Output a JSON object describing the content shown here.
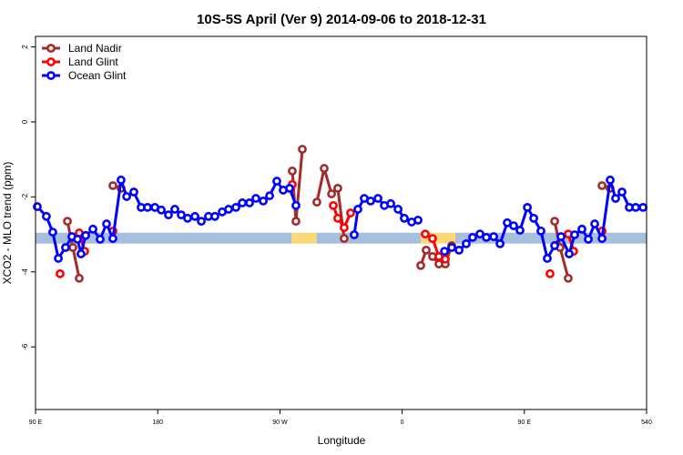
{
  "chart_data": {
    "type": "line",
    "title": "10S-5S April (Ver 9)   2014-09-06 to 2018-12-31",
    "x_label": "Longitude",
    "y_label": "XCO2 - MLO trend (ppm)",
    "xlim": [
      90,
      540
    ],
    "xticks": [
      {
        "value": 90,
        "label": "90 E"
      },
      180,
      {
        "value": 270,
        "label": "90 W"
      },
      {
        "value": 360,
        "label": "0"
      },
      {
        "value": 450,
        "label": "90 E"
      },
      540
    ],
    "ylim": [
      -7.67,
      2.28
    ],
    "yticks": [
      2,
      0,
      -2,
      -4,
      -6
    ],
    "legend": "top-left",
    "band": {
      "value": -3.1,
      "segments": [
        {
          "from": 90,
          "to": 278.5,
          "color": "#a7bedc"
        },
        {
          "from": 278.5,
          "to": 297,
          "color": "#fad97a"
        },
        {
          "from": 297,
          "to": 373.7,
          "color": "#a7bedc"
        },
        {
          "from": 373.7,
          "to": 399.2,
          "color": "#fad97a"
        },
        {
          "from": 399.2,
          "to": 540,
          "color": "#a7bedc"
        }
      ]
    },
    "series": [
      {
        "name": "Land Nadir",
        "color": "#a52a2a",
        "x": [
          113.5,
          117.5,
          122.2,
          null,
          147.0,
          153.0,
          null,
          279.1,
          281.8,
          286.5,
          null,
          297.2,
          302.6,
          308.0,
          312.6,
          317.3,
          null,
          373.7,
          377.7,
          382.4,
          387.1,
          391.8,
          396.5,
          null,
          472.3,
          476.3,
          482.3,
          null,
          507.2,
          513.2
        ],
        "values": [
          -2.65,
          -3.35,
          -4.17,
          null,
          -1.7,
          -1.77,
          null,
          -1.31,
          -2.65,
          -0.73,
          null,
          -2.14,
          -1.24,
          -1.92,
          -1.77,
          -3.11,
          null,
          -3.83,
          -3.42,
          -3.59,
          -3.79,
          -3.79,
          -3.3,
          null,
          -2.65,
          -3.35,
          -4.17,
          null,
          -1.7,
          -1.77
        ]
      },
      {
        "name": "Land Glint",
        "color": "#ff0000",
        "x": [
          108.1,
          null,
          122.2,
          126.2,
          null,
          147.0,
          null,
          279.1,
          null,
          309.3,
          312.6,
          317.3,
          322.0,
          null,
          377.0,
          382.4,
          387.1,
          391.8,
          null,
          468.9,
          null,
          482.3,
          486.3,
          null,
          507.2
        ],
        "values": [
          -4.05,
          null,
          -2.96,
          -3.45,
          null,
          -2.91,
          null,
          -1.67,
          null,
          -2.23,
          -2.57,
          -2.82,
          -2.43,
          null,
          -2.99,
          -3.11,
          -3.59,
          -3.66,
          null,
          -4.05,
          null,
          -2.99,
          -3.45,
          null,
          -2.91
        ]
      },
      {
        "name": "Ocean Glint",
        "color": "#0000ff",
        "x": [
          91.3,
          98.0,
          102.7,
          106.8,
          112.1,
          116.8,
          120.9,
          123.5,
          126.9,
          132.3,
          137.6,
          142.3,
          147.0,
          153.0,
          157.1,
          162.4,
          167.8,
          172.5,
          177.9,
          182.6,
          187.9,
          192.6,
          197.3,
          202.0,
          207.4,
          212.1,
          217.4,
          222.1,
          227.5,
          232.2,
          237.6,
          242.3,
          247.6,
          252.3,
          257.7,
          262.4,
          267.7,
          272.4,
          277.1,
          281.8,
          null,
          324.7,
          327.4,
          332.1,
          336.8,
          342.2,
          346.9,
          351.6,
          357.0,
          361.6,
          367.0,
          371.7,
          null,
          391.2,
          396.5,
          401.9,
          407.2,
          411.9,
          417.3,
          422.0,
          427.4,
          432.1,
          437.4,
          442.1,
          446.8,
          452.2,
          456.9,
          462.2,
          466.9,
          472.3,
          477.0,
          483.0,
          487.0,
          492.4,
          497.1,
          501.8,
          507.2,
          513.2,
          517.2,
          521.9,
          527.3,
          532.0,
          537.4
        ],
        "values": [
          -2.26,
          -2.52,
          -2.94,
          -3.64,
          -3.35,
          -3.06,
          -3.13,
          -3.52,
          -3.03,
          -2.86,
          -3.13,
          -2.72,
          -3.11,
          -1.55,
          -1.99,
          -1.87,
          -2.28,
          -2.28,
          -2.28,
          -2.35,
          -2.48,
          -2.33,
          -2.48,
          -2.57,
          -2.52,
          -2.65,
          -2.52,
          -2.52,
          -2.4,
          -2.33,
          -2.28,
          -2.16,
          -2.16,
          -2.04,
          -2.11,
          -1.97,
          -1.58,
          -1.82,
          -1.77,
          -2.23,
          null,
          -3.01,
          -2.33,
          -2.04,
          -2.11,
          -2.04,
          -2.23,
          -2.18,
          -2.33,
          -2.57,
          -2.67,
          -2.62,
          null,
          -3.45,
          -3.35,
          -3.42,
          -3.25,
          -3.08,
          -2.99,
          -3.08,
          -3.06,
          -3.25,
          -2.69,
          -2.77,
          -2.89,
          -2.28,
          -2.57,
          -2.91,
          -3.64,
          -3.3,
          -3.06,
          -3.52,
          -3.01,
          -2.86,
          -3.13,
          -2.72,
          -3.11,
          -1.55,
          -2.04,
          -1.87,
          -2.28,
          -2.28,
          -2.28
        ]
      }
    ]
  }
}
